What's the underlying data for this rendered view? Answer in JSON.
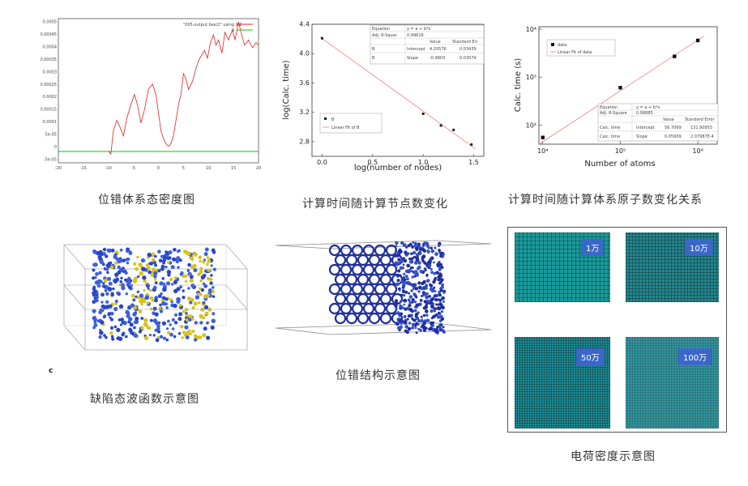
{
  "captions": {
    "p1": "位错体系态密度图",
    "p2": "计算时间随计算节点数变化",
    "p3": "计算时间随计算体系原子数变化关系",
    "p4": "缺陷态波函数示意图",
    "p5": "位错结构示意图",
    "p6": "电荷密度示意图"
  },
  "dos_plot": {
    "legend1": "\"005.output.best2\" using 1:2",
    "legend2": "0",
    "xticks": [
      "-20",
      "-15",
      "-10",
      "-5",
      "0",
      "5",
      "10",
      "15",
      "20"
    ],
    "yticks": [
      "0.0005",
      "0.00045",
      "0.0004",
      "0.00035",
      "0.0003",
      "0.00025",
      "0.0002",
      "0.00015",
      "0.0001",
      "5e-05",
      "0",
      "-5e-05"
    ],
    "colors": {
      "curve": "#e02020",
      "zero_line": "#00cc00"
    }
  },
  "chart_data": [
    {
      "type": "scatter",
      "title": "",
      "xlabel": "log(number of nodes)",
      "ylabel": "log(Calc. time)",
      "xlim": [
        -0.1,
        1.6
      ],
      "ylim": [
        2.6,
        4.4
      ],
      "xticks": [
        "0.0",
        "0.5",
        "1.0",
        "1.5"
      ],
      "yticks": [
        "2.8",
        "3.2",
        "3.6",
        "4.0",
        "4.4"
      ],
      "series": [
        {
          "name": "B",
          "x": [
            0,
            1.0,
            1.176,
            1.301,
            1.477
          ],
          "y": [
            4.21,
            3.18,
            3.02,
            2.96,
            2.76
          ]
        }
      ],
      "fit": {
        "name": "Linear Fit of B",
        "intercept": 4.20576,
        "slope": -0.9903
      },
      "fit_table": {
        "equation_label": "Equation",
        "equation": "y = a + b*x",
        "rsq_label": "Adj. R-Squar",
        "rsq": "0.99616",
        "headers": [
          "Value",
          "Standard Err"
        ],
        "rows": [
          [
            "B",
            "Intercept",
            "4.20576",
            "0.03439"
          ],
          [
            "B",
            "Slope",
            "-0.9903",
            "0.03074"
          ]
        ]
      }
    },
    {
      "type": "scatter",
      "title": "",
      "xlabel": "Number of atoms",
      "ylabel": "Calc. time (s)",
      "log_x": true,
      "log_y": true,
      "xticks": [
        "10⁴",
        "10⁵",
        "10⁶"
      ],
      "yticks": [
        "10²",
        "10³",
        "10⁴"
      ],
      "series": [
        {
          "name": "data",
          "x": [
            10000,
            100000,
            500000,
            1000000
          ],
          "y": [
            55,
            600,
            2700,
            5800
          ]
        }
      ],
      "fit": {
        "name": "Linear Fit of data"
      },
      "fit_table": {
        "equation_label": "Equation",
        "equation": "y = a + b*x",
        "rsq_label": "Adj. R-Square",
        "rsq": "0.99885",
        "headers": [
          "Value",
          "Standard Error"
        ],
        "rows": [
          [
            "Calc. time",
            "Intercept",
            "56.7069",
            "131.90955"
          ],
          [
            "Calc. time",
            "Slope",
            "0.05909",
            "2.07987E-4"
          ]
        ]
      }
    }
  ],
  "wavefn": {
    "label": "c"
  },
  "charge_tiles": [
    {
      "label": "1万",
      "color": "#1a9a9a"
    },
    {
      "label": "10万",
      "color": "#24858c"
    },
    {
      "label": "50万",
      "color": "#1d8d95"
    },
    {
      "label": "100万",
      "color": "#3fb6be"
    }
  ]
}
